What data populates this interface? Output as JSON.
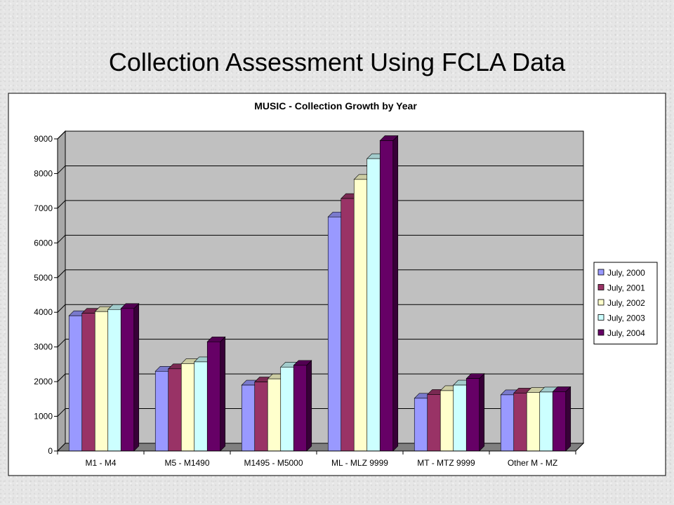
{
  "slide": {
    "title": "Collection Assessment Using FCLA Data"
  },
  "chart_data": {
    "type": "bar",
    "title": "MUSIC - Collection Growth by Year",
    "categories": [
      "M1 - M4",
      "M5 - M1490",
      "M1495 - M5000",
      "ML - MLZ 9999",
      "MT - MTZ 9999",
      "Other M - MZ"
    ],
    "series": [
      {
        "name": "July, 2000",
        "color": "#9999ff",
        "values": [
          3900,
          2300,
          1900,
          6750,
          1520,
          1620
        ]
      },
      {
        "name": "July, 2001",
        "color": "#993366",
        "values": [
          3970,
          2370,
          1990,
          7280,
          1630,
          1670
        ]
      },
      {
        "name": "July, 2002",
        "color": "#ffffcc",
        "values": [
          4020,
          2520,
          2080,
          7830,
          1740,
          1690
        ]
      },
      {
        "name": "July, 2003",
        "color": "#ccffff",
        "values": [
          4080,
          2570,
          2420,
          8430,
          1900,
          1700
        ]
      },
      {
        "name": "July, 2004",
        "color": "#660066",
        "values": [
          4110,
          3150,
          2470,
          8950,
          2090,
          1710
        ]
      }
    ],
    "ylim": [
      0,
      9000
    ],
    "yticks": [
      "0",
      "1000",
      "2000",
      "3000",
      "4000",
      "5000",
      "6000",
      "7000",
      "8000",
      "9000"
    ],
    "grid": true,
    "legend": "right",
    "plot_color": "#c0c0c0"
  }
}
